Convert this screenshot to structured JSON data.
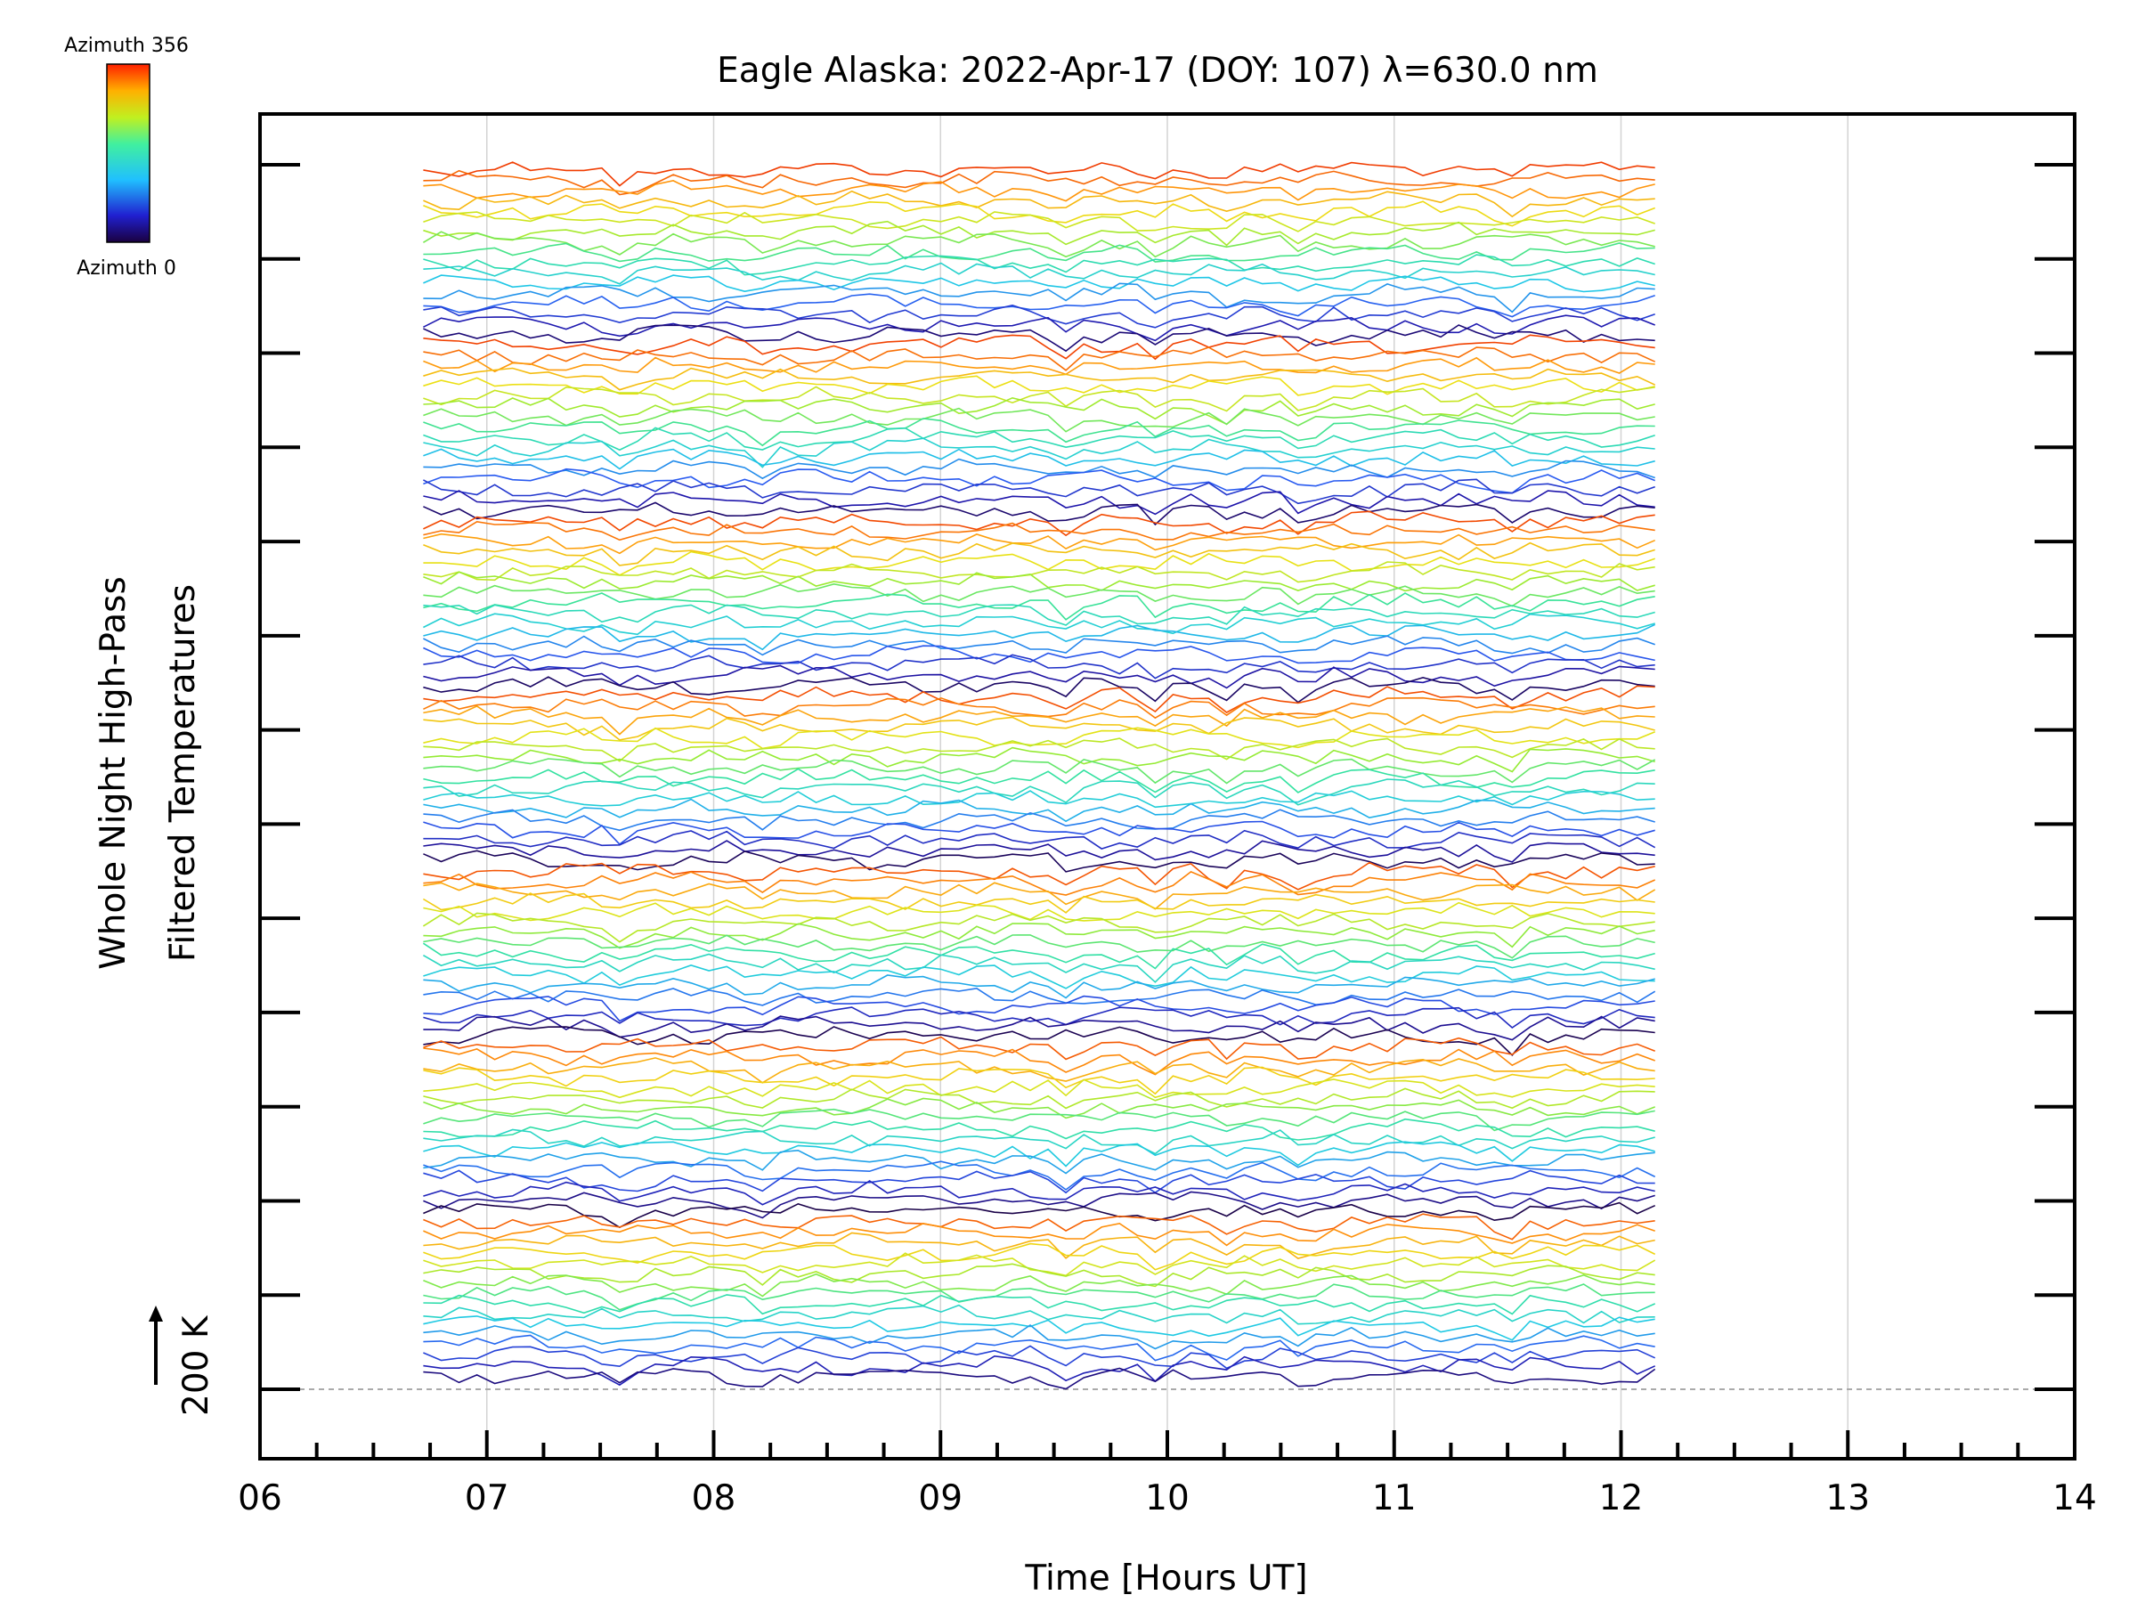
{
  "chart_data": {
    "type": "line",
    "title": "Eagle Alaska: 2022-Apr-17 (DOY: 107) λ=630.0 nm",
    "xlabel": "Time [Hours UT]",
    "ylabel_line1": "Whole Night High-Pass",
    "ylabel_line2": "Filtered Temperatures",
    "scale_marker": "200 K",
    "xlim": [
      6,
      14
    ],
    "x_ticks": [
      "06",
      "07",
      "08",
      "09",
      "10",
      "11",
      "12",
      "13",
      "14"
    ],
    "data_start_hour": 6.72,
    "data_end_hour": 12.15,
    "colorbar": {
      "min_label": "Azimuth 0",
      "max_label": "Azimuth 356",
      "min": 0,
      "max": 356
    },
    "series_count": 118,
    "azimuth_sweeps": 7,
    "series_offset_units": "stacked traces, arbitrary vertical offset",
    "colors": {
      "axis": "#000000",
      "grid": "#d3d3d3",
      "baseline": "#aaaaaa"
    }
  }
}
